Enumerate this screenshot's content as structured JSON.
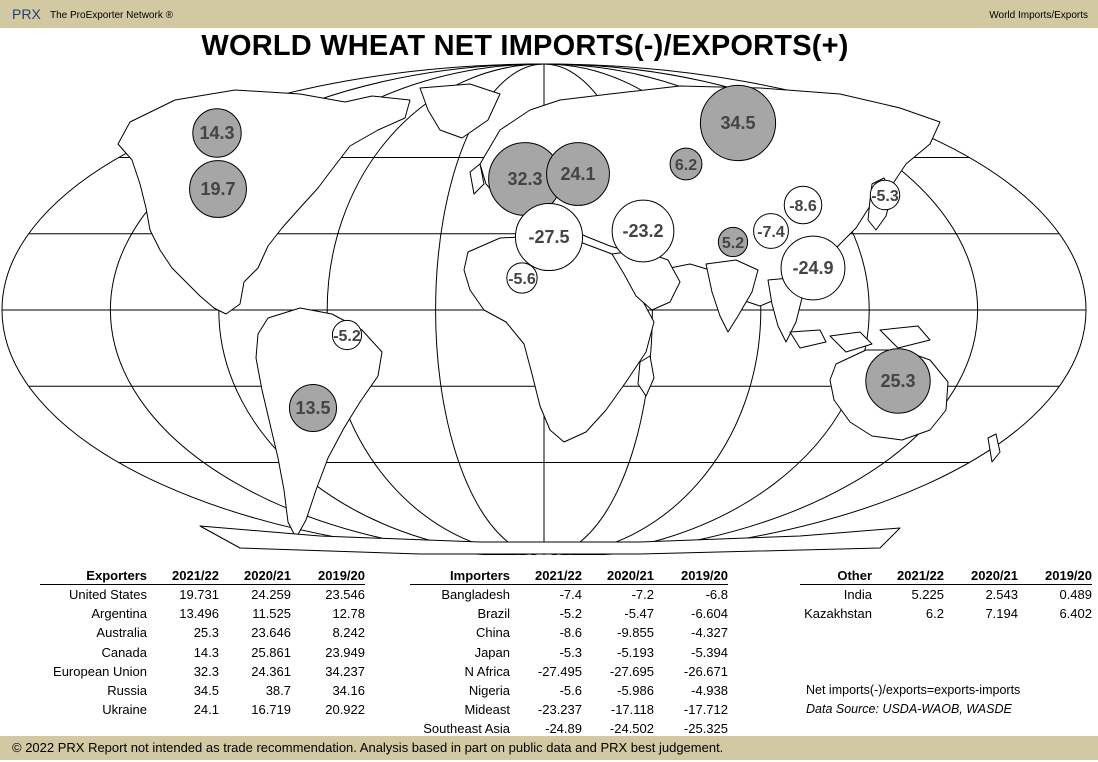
{
  "header": {
    "brand": "PRX",
    "network": "The ProExporter Network ®",
    "section": "World Imports/Exports"
  },
  "title": "WORLD WHEAT NET IMPORTS(-)/EXPORTS(+)",
  "colors": {
    "bar": "#d2c9a2",
    "exporter_bubble": "#a6a6a6",
    "importer_bubble": "#ffffff",
    "brand": "#1f3f7a"
  },
  "map_bubbles": [
    {
      "label": "14.3",
      "value": 14.3,
      "region": "Canada"
    },
    {
      "label": "19.7",
      "value": 19.731,
      "region": "United States"
    },
    {
      "label": "32.3",
      "value": 32.3,
      "region": "European Union"
    },
    {
      "label": "24.1",
      "value": 24.1,
      "region": "Ukraine"
    },
    {
      "label": "34.5",
      "value": 34.5,
      "region": "Russia"
    },
    {
      "label": "6.2",
      "value": 6.2,
      "region": "Kazakhstan"
    },
    {
      "label": "-27.5",
      "value": -27.495,
      "region": "N Africa"
    },
    {
      "label": "-23.2",
      "value": -23.237,
      "region": "Mideast"
    },
    {
      "label": "5.2",
      "value": 5.225,
      "region": "India"
    },
    {
      "label": "-7.4",
      "value": -7.4,
      "region": "Bangladesh"
    },
    {
      "label": "-8.6",
      "value": -8.6,
      "region": "China"
    },
    {
      "label": "-5.3",
      "value": -5.3,
      "region": "Japan"
    },
    {
      "label": "-24.9",
      "value": -24.89,
      "region": "Southeast Asia"
    },
    {
      "label": "-5.6",
      "value": -5.6,
      "region": "Nigeria"
    },
    {
      "label": "-5.2",
      "value": -5.2,
      "region": "Brazil"
    },
    {
      "label": "13.5",
      "value": 13.496,
      "region": "Argentina"
    },
    {
      "label": "25.3",
      "value": 25.3,
      "region": "Australia"
    }
  ],
  "exporters": {
    "headers": [
      "Exporters",
      "2021/22",
      "2020/21",
      "2019/20"
    ],
    "rows": [
      [
        "United States",
        "19.731",
        "24.259",
        "23.546"
      ],
      [
        "Argentina",
        "13.496",
        "11.525",
        "12.78"
      ],
      [
        "Australia",
        "25.3",
        "23.646",
        "8.242"
      ],
      [
        "Canada",
        "14.3",
        "25.861",
        "23.949"
      ],
      [
        "European Union",
        "32.3",
        "24.361",
        "34.237"
      ],
      [
        "Russia",
        "34.5",
        "38.7",
        "34.16"
      ],
      [
        "Ukraine",
        "24.1",
        "16.719",
        "20.922"
      ]
    ]
  },
  "importers": {
    "headers": [
      "Importers",
      "2021/22",
      "2020/21",
      "2019/20"
    ],
    "rows": [
      [
        "Bangladesh",
        "-7.4",
        "-7.2",
        "-6.8"
      ],
      [
        "Brazil",
        "-5.2",
        "-5.47",
        "-6.604"
      ],
      [
        "China",
        "-8.6",
        "-9.855",
        "-4.327"
      ],
      [
        "Japan",
        "-5.3",
        "-5.193",
        "-5.394"
      ],
      [
        "N Africa",
        "-27.495",
        "-27.695",
        "-26.671"
      ],
      [
        "Nigeria",
        "-5.6",
        "-5.986",
        "-4.938"
      ],
      [
        "Mideast",
        "-23.237",
        "-17.118",
        "-17.712"
      ],
      [
        "Southeast Asia",
        "-24.89",
        "-24.502",
        "-25.325"
      ]
    ]
  },
  "other": {
    "headers": [
      "Other",
      "2021/22",
      "2020/21",
      "2019/20"
    ],
    "rows": [
      [
        "India",
        "5.225",
        "2.543",
        "0.489"
      ],
      [
        "Kazakhstan",
        "6.2",
        "7.194",
        "6.402"
      ]
    ]
  },
  "notes": {
    "formula": "Net imports(-)/exports=exports-imports",
    "source": "Data Source: USDA-WAOB, WASDE"
  },
  "footer": "© 2022 PRX  Report not intended as trade recommendation. Analysis based in part on public data and PRX best judgement."
}
